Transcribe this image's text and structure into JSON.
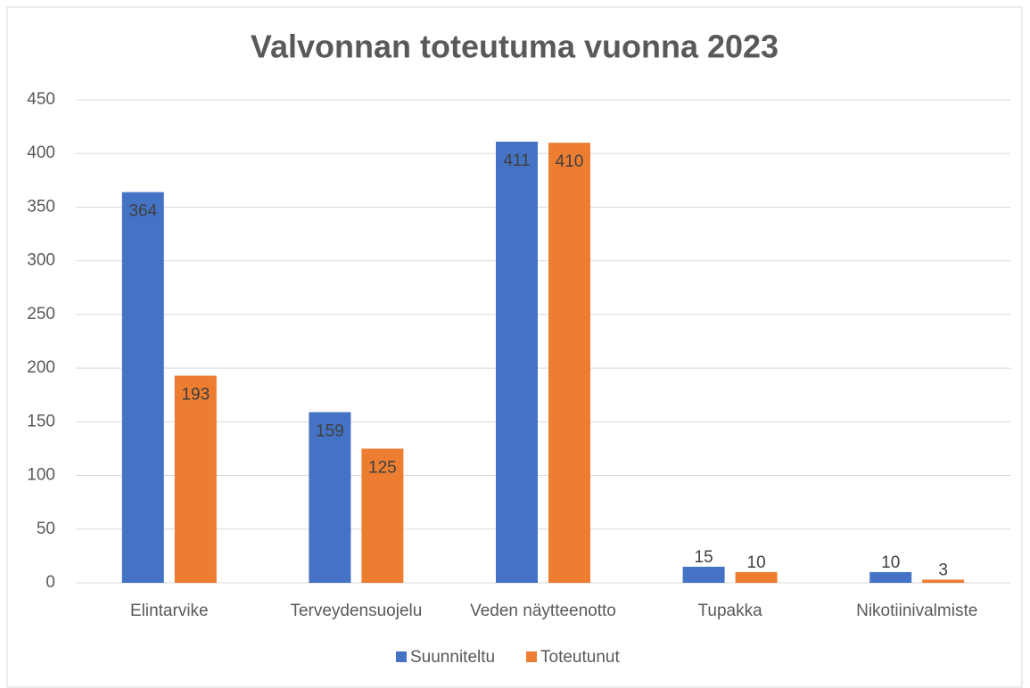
{
  "chart_data": {
    "type": "bar",
    "title": "Valvonnan toteutuma vuonna 2023",
    "categories": [
      "Elintarvike",
      "Terveydensuojelu",
      "Veden näytteenotto",
      "Tupakka",
      "Nikotiinivalmiste"
    ],
    "series": [
      {
        "name": "Suunniteltu",
        "color": "#4472c4",
        "values": [
          364,
          159,
          411,
          15,
          10
        ]
      },
      {
        "name": "Toteutunut",
        "color": "#ed7d31",
        "values": [
          193,
          125,
          410,
          10,
          3
        ]
      }
    ],
    "ylim": [
      0,
      450
    ],
    "yticks": [
      0,
      50,
      100,
      150,
      200,
      250,
      300,
      350,
      400,
      450
    ],
    "grid": true,
    "legend": "bottom"
  }
}
